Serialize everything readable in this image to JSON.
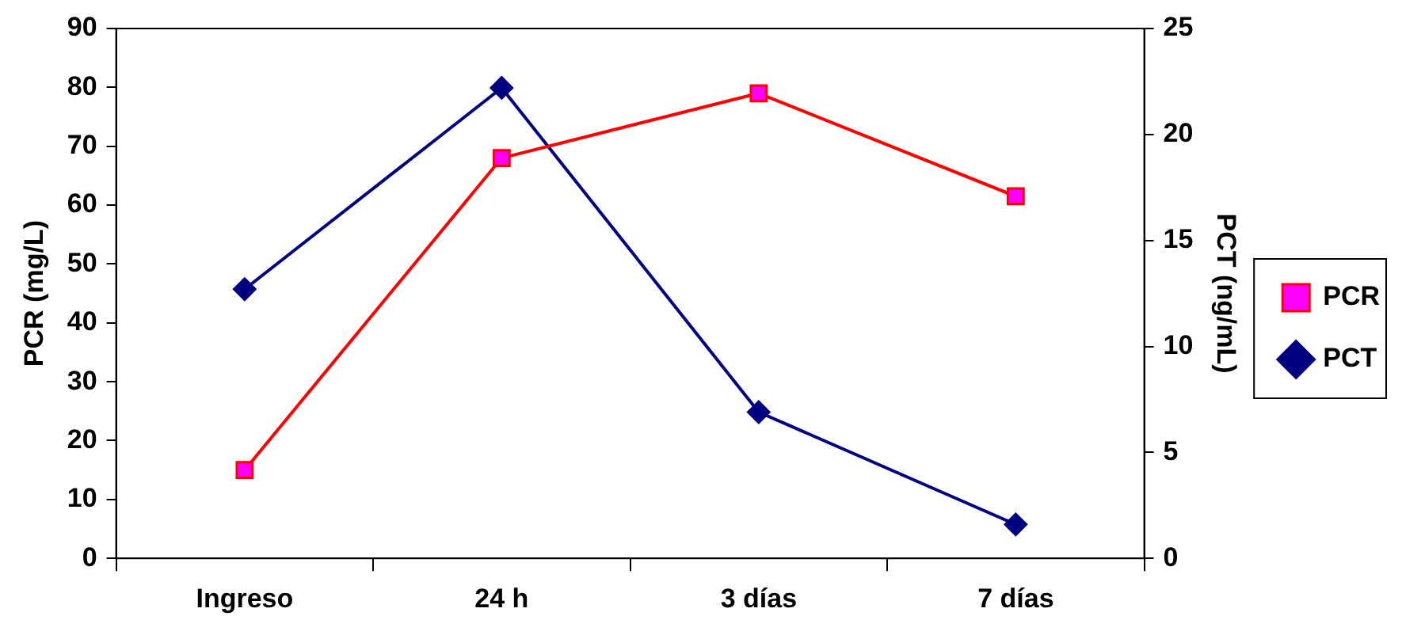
{
  "chart_data": {
    "type": "line",
    "categories": [
      "Ingreso",
      "24 h",
      "3 días",
      "7 días"
    ],
    "ylabel": "PCR (mg/L)",
    "y2label": "PCT (ng/mL)",
    "ylim": [
      0,
      90
    ],
    "yticks": [
      0,
      10,
      20,
      30,
      40,
      50,
      60,
      70,
      80,
      90
    ],
    "y2lim": [
      0,
      25
    ],
    "y2ticks": [
      0,
      5,
      10,
      15,
      20,
      25
    ],
    "grid": false,
    "legend": "right",
    "line_style": "solid",
    "series": [
      {
        "name": "PCR",
        "color": "#ff0000",
        "marker": "square",
        "values": [
          15,
          68,
          79,
          61.5
        ]
      },
      {
        "name": "PCT",
        "color": "#000080",
        "marker": "diamond",
        "axis": "y2",
        "values": [
          12.7,
          22.2,
          6.9,
          1.6
        ]
      }
    ]
  }
}
